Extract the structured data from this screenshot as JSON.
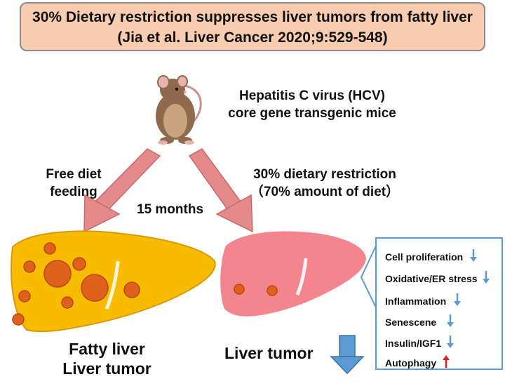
{
  "title": {
    "line1": "30% Dietary restriction suppresses liver tumors from fatty liver",
    "line2": "(Jia et al. Liver Cancer 2020;9:529-548)"
  },
  "mouse_label": {
    "line1": "Hepatitis C virus (HCV)",
    "line2": "core gene transgenic mice"
  },
  "left_branch": {
    "line1": "Free diet",
    "line2": "feeding"
  },
  "duration": "15 months",
  "right_branch": {
    "line1": "30% dietary restriction",
    "line2": "（70% amount of diet）"
  },
  "left_outcome": {
    "line1": "Fatty liver",
    "line2": "Liver tumor"
  },
  "right_outcome": "Liver tumor",
  "effects": [
    {
      "label": "Cell proliferation",
      "direction": "down"
    },
    {
      "label": "Oxidative/ER stress",
      "direction": "down"
    },
    {
      "label": "Inflammation",
      "direction": "down"
    },
    {
      "label": "Senescene",
      "direction": "down"
    },
    {
      "label": "Insulin/IGF1",
      "direction": "down"
    },
    {
      "label": "Autophagy",
      "direction": "up"
    }
  ],
  "colors": {
    "title_bg": "#f7ccb1",
    "fatty_liver": "#f7bc00",
    "normal_liver": "#f4858f",
    "tumor_nodule": "#e0611c",
    "branch_arrow": "#e58a8a",
    "down_arrow": "#5b9bd5",
    "up_arrow": "#e0201c"
  }
}
